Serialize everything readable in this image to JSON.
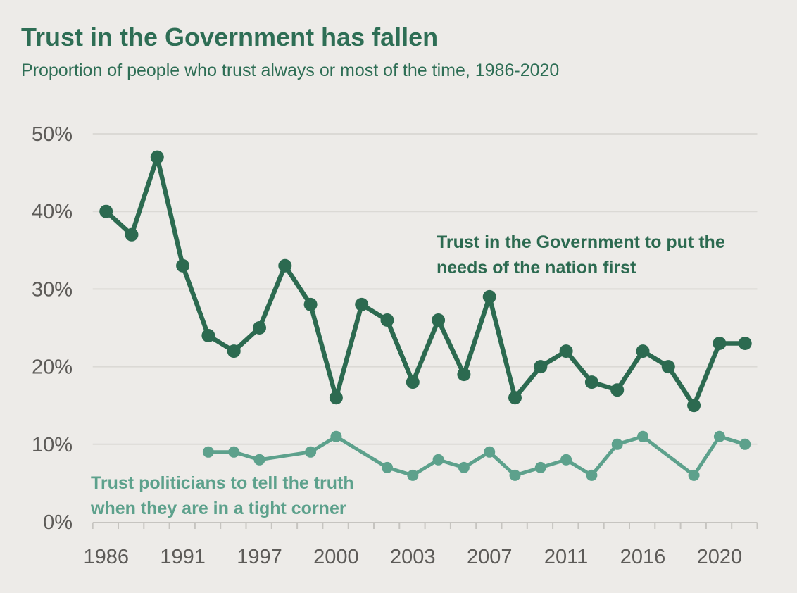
{
  "colors": {
    "background": "#edebe8",
    "title_green": "#2e6e55",
    "grid": "#dbd9d5",
    "axis": "#c6c4c0",
    "axis_text": "#5d5b58"
  },
  "chart_data": {
    "type": "line",
    "title": "Trust in the Government has fallen",
    "subtitle": "Proportion of people who trust always or most of the time, 1986-2020",
    "x_axis": {
      "kind": "categorical-survey-waves",
      "n_points": 26,
      "tick_labels": [
        "1986",
        "1991",
        "1997",
        "2000",
        "2003",
        "2007",
        "2011",
        "2016",
        "2020"
      ],
      "tick_point_indices": [
        0,
        3,
        6,
        9,
        12,
        15,
        18,
        21,
        24
      ]
    },
    "y_axis": {
      "min": 0,
      "max": 50,
      "step": 10,
      "tick_labels": [
        "0%",
        "10%",
        "20%",
        "30%",
        "40%",
        "50%"
      ],
      "grid": true
    },
    "legend": "none (series labeled by inline annotations)",
    "series": [
      {
        "id": "government-trust",
        "name": "Trust in the Government to put the needs of the nation first",
        "color": "#2c6a50",
        "points": [
          [
            0,
            40
          ],
          [
            1,
            37
          ],
          [
            2,
            47
          ],
          [
            3,
            33
          ],
          [
            4,
            24
          ],
          [
            5,
            22
          ],
          [
            6,
            25
          ],
          [
            7,
            33
          ],
          [
            8,
            28
          ],
          [
            9,
            16
          ],
          [
            10,
            28
          ],
          [
            11,
            26
          ],
          [
            12,
            18
          ],
          [
            13,
            26
          ],
          [
            14,
            19
          ],
          [
            15,
            29
          ],
          [
            16,
            16
          ],
          [
            17,
            20
          ],
          [
            18,
            22
          ],
          [
            19,
            18
          ],
          [
            20,
            17
          ],
          [
            21,
            22
          ],
          [
            22,
            20
          ],
          [
            23,
            15
          ],
          [
            24,
            23
          ],
          [
            25,
            23
          ]
        ]
      },
      {
        "id": "politicians-truth",
        "name": "Trust politicians to tell the truth when they are in a tight corner",
        "color": "#5da18c",
        "points": [
          [
            4,
            9
          ],
          [
            5,
            9
          ],
          [
            6,
            8
          ],
          [
            8,
            9
          ],
          [
            9,
            11
          ],
          [
            11,
            7
          ],
          [
            12,
            6
          ],
          [
            13,
            8
          ],
          [
            14,
            7
          ],
          [
            15,
            9
          ],
          [
            16,
            6
          ],
          [
            17,
            7
          ],
          [
            18,
            8
          ],
          [
            19,
            6
          ],
          [
            20,
            10
          ],
          [
            21,
            11
          ],
          [
            23,
            6
          ],
          [
            24,
            11
          ],
          [
            25,
            10
          ]
        ]
      }
    ],
    "annotations": [
      {
        "id": "government-trust-label",
        "lines": [
          "Trust in the Government to put the",
          "needs of the nation first"
        ],
        "color": "#2c6a50"
      },
      {
        "id": "politicians-truth-label",
        "lines": [
          "Trust politicians to tell the truth",
          "when they are in a tight corner"
        ],
        "color": "#5da18c"
      }
    ]
  }
}
